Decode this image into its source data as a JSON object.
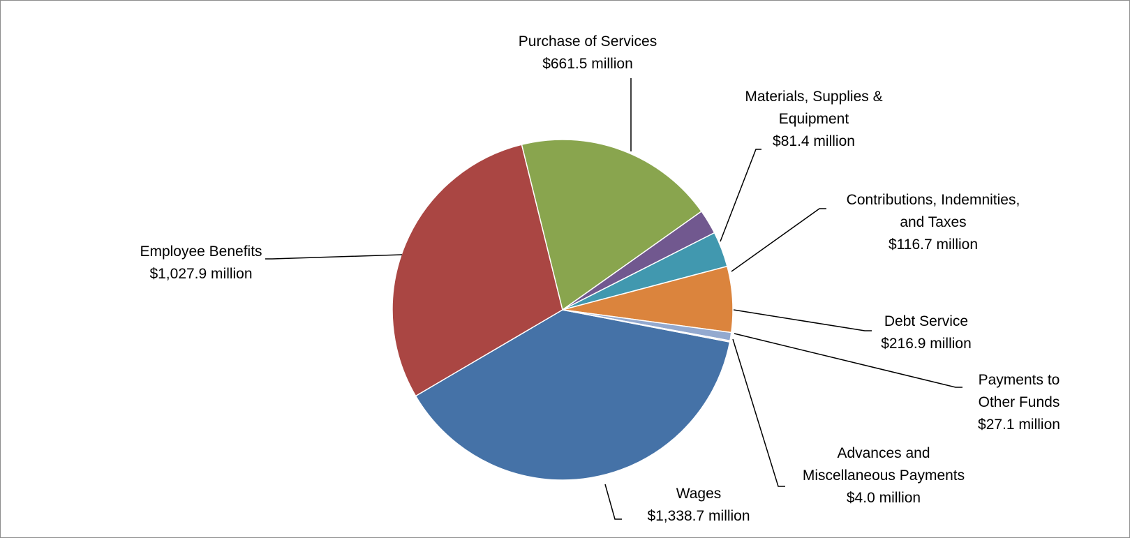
{
  "chart_data": {
    "type": "pie",
    "title": "",
    "slices": [
      {
        "label_lines": [
          "Wages",
          "$1,338.7 million"
        ],
        "category": "Wages",
        "value": 1338.7,
        "color": "#4572a7"
      },
      {
        "label_lines": [
          "Employee Benefits",
          "$1,027.9 million"
        ],
        "category": "Employee Benefits",
        "value": 1027.9,
        "color": "#aa4643"
      },
      {
        "label_lines": [
          "Purchase of Services",
          "$661.5 million"
        ],
        "category": "Purchase of Services",
        "value": 661.5,
        "color": "#89a54e"
      },
      {
        "label_lines": [
          "Materials, Supplies &",
          "Equipment",
          "$81.4 million"
        ],
        "category": "Materials, Supplies & Equipment",
        "value": 81.4,
        "color": "#71588f"
      },
      {
        "label_lines": [
          "Contributions, Indemnities,",
          "and Taxes",
          "$116.7 million"
        ],
        "category": "Contributions, Indemnities, and Taxes",
        "value": 116.7,
        "color": "#4198af"
      },
      {
        "label_lines": [
          "Debt Service",
          "$216.9 million"
        ],
        "category": "Debt Service",
        "value": 216.9,
        "color": "#db843d"
      },
      {
        "label_lines": [
          "Payments to",
          "Other Funds",
          "$27.1 million"
        ],
        "category": "Payments to Other Funds",
        "value": 27.1,
        "color": "#93a9cf"
      },
      {
        "label_lines": [
          "Advances and",
          "Miscellaneous Payments",
          "$4.0 million"
        ],
        "category": "Advances and Miscellaneous Payments",
        "value": 4.0,
        "color": "#d19392"
      }
    ]
  }
}
